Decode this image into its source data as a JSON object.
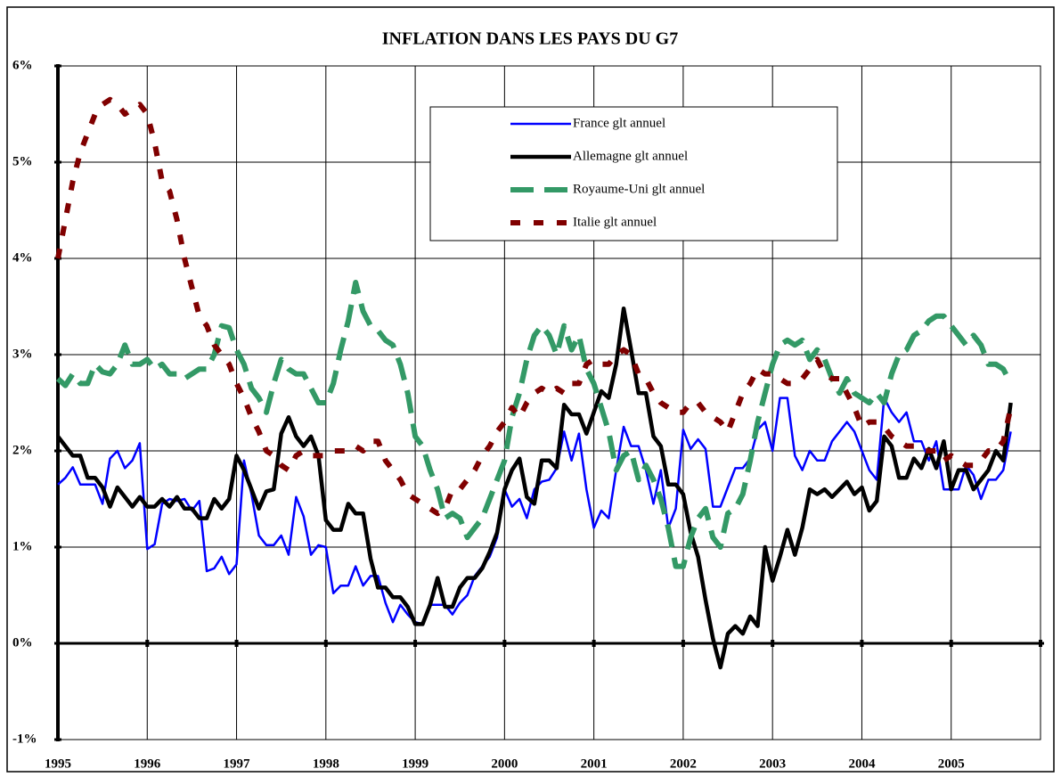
{
  "chart_data": {
    "type": "line",
    "title": "INFLATION DANS LES PAYS DU G7",
    "categories": [
      "1995",
      null,
      null,
      null,
      null,
      null,
      null,
      null,
      null,
      null,
      null,
      null,
      "1996",
      null,
      null,
      null,
      null,
      null,
      null,
      null,
      null,
      null,
      null,
      null,
      "1997",
      null,
      null,
      null,
      null,
      null,
      null,
      null,
      null,
      null,
      null,
      null,
      "1998",
      null,
      null,
      null,
      null,
      null,
      null,
      null,
      null,
      null,
      null,
      null,
      "1999",
      null,
      null,
      null,
      null,
      null,
      null,
      null,
      null,
      null,
      null,
      null,
      "2000",
      null,
      null,
      null,
      null,
      null,
      null,
      null,
      null,
      null,
      null,
      null,
      "2001",
      null,
      null,
      null,
      null,
      null,
      null,
      null,
      null,
      null,
      null,
      null,
      "2002",
      null,
      null,
      null,
      null,
      null,
      null,
      null,
      null,
      null,
      null,
      null,
      "2003",
      null,
      null,
      null,
      null,
      null,
      null,
      null,
      null,
      null,
      null,
      null,
      "2004",
      null,
      null,
      null,
      null,
      null,
      null,
      null,
      null,
      null,
      null,
      null,
      "2005",
      null,
      null,
      null,
      null,
      null,
      null,
      null,
      null,
      null,
      null,
      null
    ],
    "series": [
      {
        "name": "France glt annuel",
        "color": "#0000ff",
        "values": [
          1.65,
          1.72,
          1.83,
          1.65,
          1.65,
          1.65,
          1.45,
          1.92,
          2.0,
          1.82,
          1.9,
          2.08,
          0.98,
          1.03,
          1.45,
          1.5,
          1.48,
          1.5,
          1.38,
          1.48,
          0.75,
          0.78,
          0.9,
          0.72,
          0.82,
          1.9,
          1.55,
          1.12,
          1.02,
          1.02,
          1.12,
          0.92,
          1.52,
          1.32,
          0.92,
          1.02,
          1.0,
          0.52,
          0.6,
          0.6,
          0.8,
          0.6,
          0.7,
          0.7,
          0.42,
          0.22,
          0.4,
          0.3,
          0.22,
          0.2,
          0.4,
          0.4,
          0.4,
          0.3,
          0.42,
          0.5,
          0.7,
          0.8,
          0.9,
          1.1,
          1.6,
          1.42,
          1.5,
          1.3,
          1.6,
          1.68,
          1.7,
          1.82,
          2.2,
          1.9,
          2.18,
          1.6,
          1.2,
          1.38,
          1.3,
          1.8,
          2.25,
          2.05,
          2.05,
          1.8,
          1.45,
          1.8,
          1.2,
          1.4,
          2.22,
          2.02,
          2.12,
          2.02,
          1.42,
          1.42,
          1.62,
          1.82,
          1.82,
          1.92,
          2.22,
          2.3,
          2.0,
          2.55,
          2.55,
          1.95,
          1.8,
          2.0,
          1.9,
          1.9,
          2.1,
          2.2,
          2.3,
          2.2,
          2.0,
          1.8,
          1.7,
          2.55,
          2.4,
          2.3,
          2.4,
          2.1,
          2.1,
          1.9,
          2.1,
          1.6,
          1.6,
          1.6,
          1.85,
          1.75,
          1.5,
          1.7,
          1.7,
          1.8,
          2.2,
          null,
          null,
          null
        ]
      },
      {
        "name": "Allemagne glt annuel",
        "color": "#000000",
        "values": [
          2.15,
          2.05,
          1.95,
          1.95,
          1.72,
          1.72,
          1.62,
          1.42,
          1.62,
          1.52,
          1.42,
          1.52,
          1.42,
          1.42,
          1.5,
          1.42,
          1.52,
          1.4,
          1.4,
          1.3,
          1.3,
          1.5,
          1.4,
          1.5,
          1.95,
          1.8,
          1.6,
          1.4,
          1.58,
          1.6,
          2.18,
          2.35,
          2.15,
          2.05,
          2.15,
          1.95,
          1.28,
          1.18,
          1.18,
          1.45,
          1.35,
          1.35,
          0.88,
          0.58,
          0.58,
          0.48,
          0.48,
          0.38,
          0.2,
          0.2,
          0.4,
          0.68,
          0.38,
          0.38,
          0.58,
          0.68,
          0.68,
          0.78,
          0.95,
          1.15,
          1.6,
          1.8,
          1.92,
          1.52,
          1.45,
          1.9,
          1.9,
          1.82,
          2.48,
          2.38,
          2.38,
          2.18,
          2.4,
          2.62,
          2.55,
          2.9,
          3.48,
          3.05,
          2.6,
          2.6,
          2.15,
          2.05,
          1.65,
          1.65,
          1.55,
          1.15,
          0.9,
          0.45,
          0.05,
          -0.25,
          0.1,
          0.18,
          0.1,
          0.28,
          0.18,
          1.0,
          0.65,
          0.9,
          1.18,
          0.92,
          1.2,
          1.6,
          1.55,
          1.6,
          1.52,
          1.6,
          1.68,
          1.55,
          1.62,
          1.38,
          1.48,
          2.15,
          2.05,
          1.72,
          1.72,
          1.92,
          1.82,
          2.02,
          1.82,
          2.1,
          1.6,
          1.8,
          1.8,
          1.6,
          1.7,
          1.8,
          2.0,
          1.9,
          2.5,
          null,
          null,
          null
        ]
      },
      {
        "name": "Royaume-Uni glt annuel",
        "color": "#339966",
        "values": [
          2.75,
          2.68,
          2.8,
          2.7,
          2.7,
          2.9,
          2.82,
          2.8,
          2.9,
          3.1,
          2.9,
          2.9,
          2.95,
          2.85,
          2.9,
          2.8,
          2.8,
          2.75,
          2.8,
          2.85,
          2.85,
          3.0,
          3.3,
          3.28,
          3.05,
          2.9,
          2.65,
          2.55,
          2.4,
          2.7,
          2.95,
          2.85,
          2.8,
          2.8,
          2.65,
          2.5,
          2.5,
          2.7,
          3.05,
          3.35,
          3.75,
          3.45,
          3.3,
          3.25,
          3.15,
          3.1,
          2.9,
          2.6,
          2.15,
          2.05,
          1.8,
          1.6,
          1.3,
          1.35,
          1.3,
          1.1,
          1.2,
          1.3,
          1.5,
          1.7,
          1.9,
          2.35,
          2.6,
          2.95,
          3.2,
          3.3,
          3.2,
          3.0,
          3.3,
          3.05,
          3.2,
          2.85,
          2.7,
          2.45,
          2.2,
          1.8,
          1.95,
          2.0,
          1.7,
          1.85,
          1.7,
          1.5,
          1.2,
          0.8,
          0.8,
          1.1,
          1.3,
          1.4,
          1.1,
          1.0,
          1.35,
          1.4,
          1.55,
          1.9,
          2.3,
          2.6,
          2.9,
          3.1,
          3.15,
          3.1,
          3.15,
          2.95,
          3.05,
          2.95,
          2.75,
          2.6,
          2.75,
          2.6,
          2.55,
          2.5,
          2.6,
          2.5,
          2.8,
          3.0,
          3.05,
          3.2,
          3.25,
          3.35,
          3.4,
          3.4,
          3.3,
          3.2,
          3.1,
          3.2,
          3.1,
          2.9,
          2.9,
          2.85,
          2.7,
          null,
          null,
          null
        ]
      },
      {
        "name": "Italie glt annuel",
        "color": "#800000",
        "values": [
          4.0,
          4.4,
          4.8,
          5.1,
          5.3,
          5.5,
          5.6,
          5.65,
          5.6,
          5.5,
          5.55,
          5.6,
          5.5,
          5.2,
          4.8,
          4.7,
          4.4,
          4.0,
          3.7,
          3.4,
          3.3,
          3.1,
          3.0,
          2.9,
          2.7,
          2.55,
          2.35,
          2.2,
          2.0,
          1.95,
          1.85,
          1.8,
          1.95,
          2.0,
          1.95,
          1.95,
          1.95,
          2.0,
          2.0,
          2.0,
          2.05,
          2.0,
          2.1,
          2.1,
          1.9,
          1.8,
          1.7,
          1.55,
          1.5,
          1.45,
          1.4,
          1.35,
          1.4,
          1.6,
          1.6,
          1.7,
          1.8,
          1.95,
          2.05,
          2.2,
          2.3,
          2.45,
          2.35,
          2.5,
          2.6,
          2.65,
          2.6,
          2.65,
          2.6,
          2.7,
          2.7,
          2.9,
          2.95,
          2.9,
          2.9,
          3.0,
          3.05,
          3.0,
          2.8,
          2.75,
          2.6,
          2.5,
          2.45,
          2.4,
          2.4,
          2.5,
          2.5,
          2.4,
          2.35,
          2.3,
          2.2,
          2.4,
          2.6,
          2.7,
          2.85,
          2.8,
          2.8,
          2.75,
          2.7,
          2.7,
          2.75,
          2.85,
          2.95,
          2.8,
          2.75,
          2.75,
          2.6,
          2.45,
          2.25,
          2.3,
          2.3,
          2.25,
          2.15,
          2.1,
          2.05,
          2.05,
          2.0,
          2.0,
          2.0,
          1.9,
          1.95,
          1.9,
          1.85,
          1.85,
          1.9,
          2.0,
          2.0,
          2.1,
          2.45,
          null,
          null,
          null
        ]
      }
    ],
    "ylim": [
      -1,
      6
    ],
    "yticks": [
      {
        "value": -1,
        "label": "-1%"
      },
      {
        "value": 0,
        "label": "0%"
      },
      {
        "value": 1,
        "label": "1%"
      },
      {
        "value": 2,
        "label": "2%"
      },
      {
        "value": 3,
        "label": "3%"
      },
      {
        "value": 4,
        "label": "4%"
      },
      {
        "value": 5,
        "label": "5%"
      },
      {
        "value": 6,
        "label": "6%"
      }
    ],
    "grid": true,
    "legend": "upper center"
  }
}
